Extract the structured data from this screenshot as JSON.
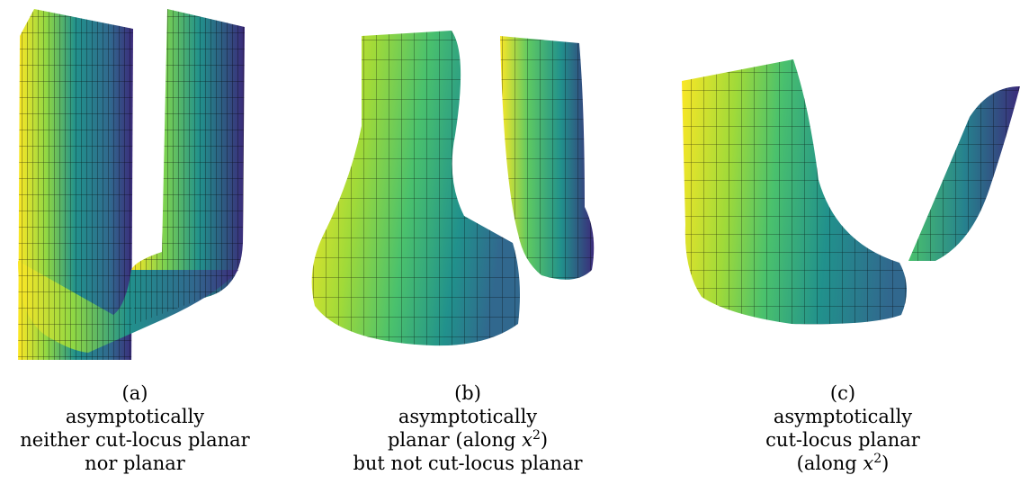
{
  "panels": [
    {
      "id": "a",
      "tag": "(a)",
      "lines": [
        "asymptotically",
        "neither cut-locus planar",
        "nor planar"
      ]
    },
    {
      "id": "b",
      "tag": "(b)",
      "lines": [
        "asymptotically",
        "planar (along ",
        "but not cut-locus planar"
      ],
      "var": "x",
      "exp": "2",
      "close": ")"
    },
    {
      "id": "c",
      "tag": "(c)",
      "lines": [
        "asymptotically",
        "cut-locus planar",
        "(along "
      ],
      "var": "x",
      "exp": "2",
      "close": ")"
    }
  ],
  "colors": {
    "viridis_yellow": "#fde725",
    "viridis_green": "#5ec962",
    "viridis_teal": "#21918c",
    "viridis_blue": "#3b528b",
    "viridis_purple": "#440154",
    "mesh": "#000000"
  }
}
